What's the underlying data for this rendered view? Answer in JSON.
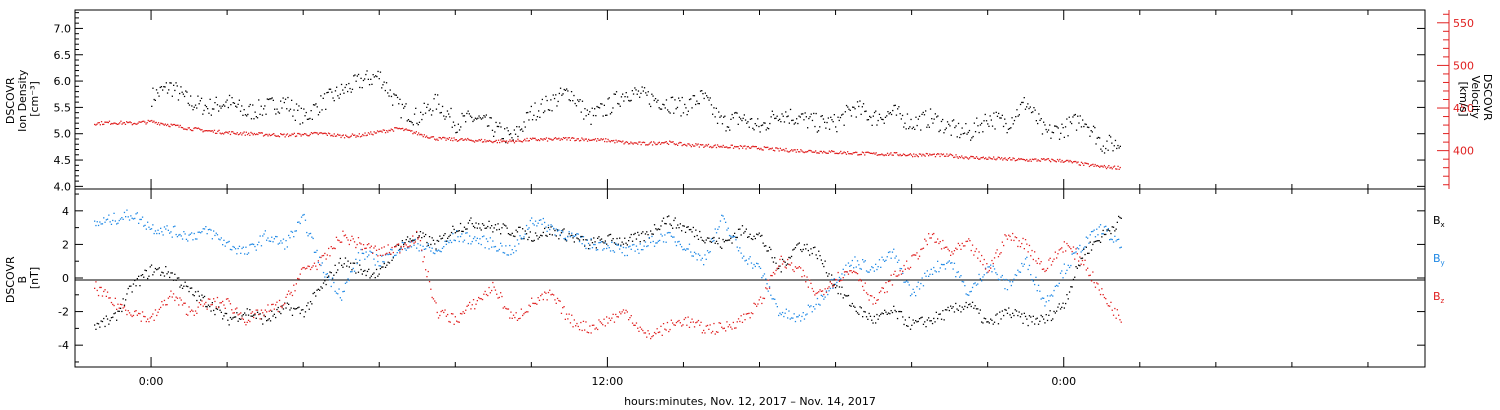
{
  "chart_data": [
    {
      "type": "scatter",
      "panel": "plasma",
      "ylabel_lines": [
        "DSCOVR",
        "Ion Density",
        "[cm⁻³]"
      ],
      "ylim": [
        3.95,
        7.35
      ],
      "yticks": [
        "4.0",
        "4.5",
        "5.0",
        "5.5",
        "6.0",
        "6.5",
        "7.0"
      ],
      "y2label_lines": [
        "DSCOVR",
        "Velocity",
        "[km/s]"
      ],
      "y2lim": [
        355,
        565
      ],
      "y2ticks": [
        "400",
        "450",
        "500",
        "550"
      ],
      "series": [
        {
          "axis": "left",
          "color": "#000000",
          "x": [
            0,
            0.5,
            1,
            1.5,
            2,
            2.5,
            3,
            3.5,
            4,
            4.5,
            5,
            5.5,
            6,
            6.5,
            7,
            7.5,
            8,
            8.5,
            9,
            9.5,
            10,
            10.5,
            11,
            11.5,
            12,
            12.5,
            13,
            13.5,
            14,
            14.5,
            15,
            15.5,
            16,
            16.5,
            17,
            17.5,
            18,
            18.5,
            19,
            19.5,
            20,
            20.5,
            21,
            21.5,
            22,
            22.5,
            23,
            23.5,
            24,
            24.5,
            25,
            25.5
          ],
          "values": [
            5.7,
            5.9,
            5.6,
            5.5,
            5.6,
            5.4,
            5.5,
            5.6,
            5.3,
            5.6,
            5.8,
            6.0,
            6.1,
            5.5,
            5.3,
            5.6,
            5.2,
            5.3,
            5.1,
            4.9,
            5.4,
            5.6,
            5.8,
            5.3,
            5.5,
            5.8,
            5.7,
            5.6,
            5.5,
            5.7,
            5.2,
            5.3,
            5.1,
            5.4,
            5.3,
            5.2,
            5.2,
            5.5,
            5.3,
            5.4,
            5.2,
            5.3,
            5.1,
            5.0,
            5.3,
            5.2,
            5.6,
            5.0,
            5.1,
            5.3,
            4.8,
            4.8
          ]
        },
        {
          "axis": "right",
          "color": "#e02020",
          "x": [
            -1.5,
            -1,
            -0.5,
            0,
            0.5,
            1,
            1.5,
            2,
            2.5,
            3,
            3.5,
            4,
            4.5,
            5,
            5.5,
            6,
            6.5,
            7,
            7.5,
            8,
            8.5,
            9,
            9.5,
            10,
            10.5,
            11,
            11.5,
            12,
            12.5,
            13,
            13.5,
            14,
            14.5,
            15,
            15.5,
            16,
            16.5,
            17,
            17.5,
            18,
            18.5,
            19,
            19.5,
            20,
            20.5,
            21,
            21.5,
            22,
            22.5,
            23,
            23.5,
            24,
            24.5,
            25,
            25.5
          ],
          "values": [
            432,
            433,
            432,
            434,
            430,
            426,
            423,
            421,
            420,
            419,
            418,
            419,
            420,
            417,
            418,
            422,
            426,
            420,
            414,
            413,
            412,
            411,
            411,
            413,
            413,
            414,
            413,
            412,
            409,
            408,
            410,
            407,
            406,
            405,
            404,
            403,
            401,
            400,
            399,
            398,
            397,
            396,
            396,
            395,
            395,
            394,
            392,
            391,
            390,
            389,
            389,
            388,
            384,
            381,
            380
          ]
        }
      ]
    },
    {
      "type": "scatter",
      "panel": "magnetic",
      "ylabel_lines": [
        "DSCOVR",
        "B",
        "[nT]"
      ],
      "ylim": [
        -5.3,
        5.3
      ],
      "yticks": [
        "-4",
        "-2",
        "0",
        "2",
        "4"
      ],
      "legend_position": "right",
      "series": [
        {
          "name": "B",
          "sub": "x",
          "color": "#000000",
          "x": [
            -1.5,
            -1,
            -0.5,
            0,
            0.5,
            1,
            1.5,
            2,
            2.5,
            3,
            3.5,
            4,
            4.5,
            5,
            5.5,
            6,
            6.5,
            7,
            7.5,
            8,
            8.5,
            9,
            9.5,
            10,
            10.5,
            11,
            11.5,
            12,
            12.5,
            13,
            13.5,
            14,
            14.5,
            15,
            15.5,
            16,
            16.5,
            17,
            17.5,
            18,
            18.5,
            19,
            19.5,
            20,
            20.5,
            21,
            21.5,
            22,
            22.5,
            23,
            23.5,
            24,
            24.5,
            25,
            25.5
          ],
          "values": [
            -2.8,
            -2.5,
            -0.5,
            0.5,
            0.3,
            -0.8,
            -1.5,
            -2.5,
            -2.0,
            -2.5,
            -1.8,
            -2.0,
            -0.5,
            1.0,
            0.5,
            0.2,
            2.0,
            2.5,
            2.0,
            3.0,
            3.3,
            3.0,
            2.8,
            2.5,
            2.8,
            2.5,
            2.0,
            2.3,
            2.2,
            2.5,
            3.5,
            3.0,
            2.5,
            2.0,
            2.8,
            2.5,
            0.5,
            2.0,
            1.5,
            -0.5,
            -1.8,
            -2.5,
            -2.0,
            -2.8,
            -2.5,
            -2.0,
            -1.5,
            -2.8,
            -2.0,
            -2.5,
            -2.5,
            -1.5,
            1.5,
            2.5,
            3.5
          ]
        },
        {
          "name": "B",
          "sub": "y",
          "color": "#1e88e5",
          "x": [
            -1.5,
            -1,
            -0.5,
            0,
            0.5,
            1,
            1.5,
            2,
            2.5,
            3,
            3.5,
            4,
            4.5,
            5,
            5.5,
            6,
            6.5,
            7,
            7.5,
            8,
            8.5,
            9,
            9.5,
            10,
            10.5,
            11,
            11.5,
            12,
            12.5,
            13,
            13.5,
            14,
            14.5,
            15,
            15.5,
            16,
            16.5,
            17,
            17.5,
            18,
            18.5,
            19,
            19.5,
            20,
            20.5,
            21,
            21.5,
            22,
            22.5,
            23,
            23.5,
            24,
            24.5,
            25,
            25.5
          ],
          "values": [
            3.2,
            3.5,
            3.8,
            3.0,
            2.8,
            2.5,
            2.8,
            2.0,
            1.5,
            2.5,
            2.0,
            3.5,
            0.5,
            -1.0,
            1.5,
            1.0,
            1.8,
            2.0,
            1.5,
            2.5,
            2.3,
            2.0,
            1.5,
            3.5,
            3.0,
            2.5,
            2.0,
            2.0,
            1.5,
            2.0,
            2.5,
            2.0,
            1.0,
            3.5,
            1.5,
            0.5,
            -2.0,
            -2.5,
            -1.5,
            0.0,
            1.0,
            0.5,
            1.5,
            -1.0,
            0.5,
            1.0,
            -1.0,
            0.8,
            -0.5,
            1.0,
            -1.5,
            0.5,
            2.0,
            3.0,
            1.8
          ]
        },
        {
          "name": "B",
          "sub": "z",
          "color": "#e02020",
          "x": [
            -1.5,
            -1,
            -0.5,
            0,
            0.5,
            1,
            1.5,
            2,
            2.5,
            3,
            3.5,
            4,
            4.5,
            5,
            5.5,
            6,
            6.5,
            7,
            7.5,
            8,
            8.5,
            9,
            9.5,
            10,
            10.5,
            11,
            11.5,
            12,
            12.5,
            13,
            13.5,
            14,
            14.5,
            15,
            15.5,
            16,
            16.5,
            17,
            17.5,
            18,
            18.5,
            19,
            19.5,
            20,
            20.5,
            21,
            21.5,
            22,
            22.5,
            23,
            23.5,
            24,
            24.5,
            25,
            25.5
          ],
          "values": [
            -0.5,
            -1.5,
            -2.0,
            -2.5,
            -1.0,
            -2.0,
            -1.5,
            -1.5,
            -2.5,
            -2.0,
            -1.5,
            0.5,
            1.0,
            2.5,
            2.0,
            1.5,
            1.8,
            2.5,
            -2.0,
            -2.5,
            -1.5,
            -0.5,
            -2.5,
            -1.5,
            -1.0,
            -2.5,
            -3.0,
            -2.5,
            -2.0,
            -3.5,
            -3.0,
            -2.5,
            -3.0,
            -3.0,
            -2.5,
            -1.5,
            1.0,
            0.5,
            -1.0,
            0.0,
            0.5,
            -1.5,
            0.0,
            1.0,
            2.5,
            1.5,
            2.0,
            0.5,
            2.5,
            2.0,
            0.5,
            2.0,
            1.0,
            -1.0,
            -2.5
          ]
        }
      ]
    }
  ],
  "xaxis": {
    "xlim": [
      -2.0,
      33.5
    ],
    "ticks": [
      {
        "value": 0,
        "label": "0:00"
      },
      {
        "value": 12,
        "label": "12:00"
      },
      {
        "value": 24,
        "label": "0:00"
      }
    ],
    "minor_step": 2,
    "label": "hours:minutes, Nov. 12, 2017 – Nov. 14, 2017"
  }
}
